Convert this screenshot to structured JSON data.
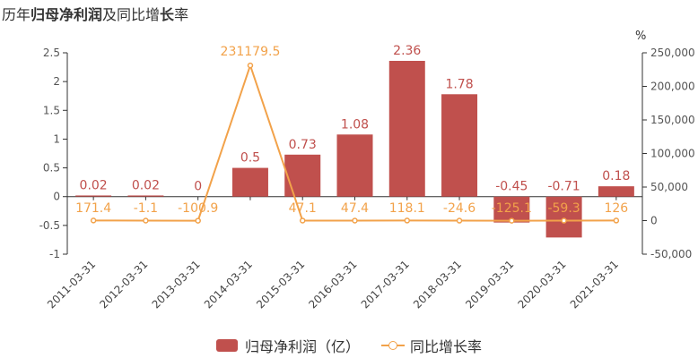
{
  "title": {
    "part1": "历年",
    "part2": "归母净利润",
    "part3": "及同比增",
    "part4": "长",
    "part5": "率"
  },
  "right_axis_unit": "%",
  "colors": {
    "bar": "#c0504d",
    "line": "#f2a24a",
    "axis": "#333333"
  },
  "chart_data": {
    "type": "bar",
    "categories": [
      "2011-03-31",
      "2012-03-31",
      "2013-03-31",
      "2014-03-31",
      "2015-03-31",
      "2016-03-31",
      "2017-03-31",
      "2018-03-31",
      "2019-03-31",
      "2020-03-31",
      "2021-03-31"
    ],
    "series": [
      {
        "name": "归母净利润（亿）",
        "type": "bar",
        "axis": "left",
        "values": [
          0.02,
          0.02,
          0,
          0.5,
          0.73,
          1.08,
          2.36,
          1.78,
          -0.45,
          -0.71,
          0.18
        ],
        "labels": [
          "0.02",
          "0.02",
          "0",
          "0.5",
          "0.73",
          "1.08",
          "2.36",
          "1.78",
          "-0.45",
          "-0.71",
          "0.18"
        ]
      },
      {
        "name": "同比增长率",
        "type": "line",
        "axis": "right",
        "values": [
          171.4,
          -1.1,
          -100.9,
          231179.5,
          47.1,
          47.4,
          118.1,
          -24.6,
          -125.1,
          -59.3,
          126
        ],
        "labels": [
          "171.4",
          "-1.1",
          "-100.9",
          "231179.5",
          "47.1",
          "47.4",
          "118.1",
          "-24.6",
          "-125.1",
          "-59.3",
          "126"
        ]
      }
    ],
    "y_left": {
      "min": -1,
      "max": 2.5,
      "ticks": [
        "2.5",
        "2",
        "1.5",
        "1",
        "0.5",
        "0",
        "-0.5",
        "-1"
      ]
    },
    "y_right": {
      "min": -50000,
      "max": 250000,
      "ticks": [
        "250,000",
        "200,000",
        "150,000",
        "100,000",
        "50,000",
        "0",
        "-50,000"
      ]
    },
    "grid": false,
    "legend_position": "bottom"
  }
}
